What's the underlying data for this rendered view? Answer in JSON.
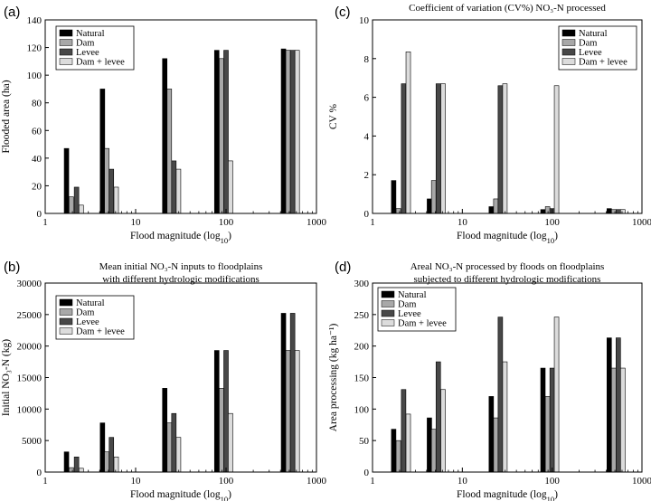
{
  "figure": {
    "panels": [
      "a",
      "b",
      "c",
      "d"
    ]
  },
  "chart_data": [
    {
      "panel": "(a)",
      "type": "bar",
      "title": [],
      "xlabel_main": "Flood magnitude (log",
      "xlabel_sub": "10",
      "xlabel_close": ")",
      "ylabel": "Flooded area (ha)",
      "xscale": "log",
      "xlim": [
        1,
        1000
      ],
      "xticks": [
        1,
        10,
        100,
        1000
      ],
      "xticklabels": [
        "1",
        "10",
        "100",
        "1000"
      ],
      "ylim": [
        0,
        140
      ],
      "yticks": [
        0,
        20,
        40,
        60,
        80,
        100,
        120,
        140
      ],
      "yticklabels": [
        "0",
        "20",
        "40",
        "60",
        "80",
        "100",
        "120",
        "140"
      ],
      "legend_position": "top-left",
      "series_names": [
        "Natural",
        "Dam",
        "Levee",
        "Dam + levee"
      ],
      "colors": [
        "#000000",
        "#a8a8a8",
        "#484848",
        "#dcdcdc"
      ],
      "groups": [
        {
          "x": [
            1.72,
            1.94,
            2.22,
            2.5
          ],
          "values": [
            47,
            12,
            19,
            6
          ]
        },
        {
          "x": [
            4.3,
            4.8,
            5.4,
            6.1
          ],
          "values": [
            90,
            47,
            32,
            19
          ]
        },
        {
          "x": [
            21,
            23.6,
            26.5,
            29.8
          ],
          "values": [
            112,
            90,
            38,
            32
          ]
        },
        {
          "x": [
            79,
            89,
            100,
            112
          ],
          "values": [
            118,
            112,
            118,
            38
          ]
        },
        {
          "x": [
            432,
            485,
            545,
            612
          ],
          "values": [
            119,
            118,
            118,
            118
          ]
        }
      ]
    },
    {
      "panel": "(c)",
      "type": "bar",
      "title": [
        "Coefficient of variation (CV%) NO₃-N processed"
      ],
      "xlabel_main": "Flood magnitude (log",
      "xlabel_sub": "10",
      "xlabel_close": ")",
      "ylabel": "CV %",
      "xscale": "log",
      "xlim": [
        1,
        1000
      ],
      "xticks": [
        1,
        10,
        100,
        1000
      ],
      "xticklabels": [
        "1",
        "10",
        "100",
        "1000"
      ],
      "ylim": [
        0,
        10
      ],
      "yticks": [
        0,
        2,
        4,
        6,
        8,
        10
      ],
      "yticklabels": [
        "0",
        "2",
        "4",
        "6",
        "8",
        "10"
      ],
      "legend_position": "top-right",
      "series_names": [
        "Natural",
        "Dam",
        "Levee",
        "Dam + levee"
      ],
      "colors": [
        "#000000",
        "#a8a8a8",
        "#484848",
        "#dcdcdc"
      ],
      "groups": [
        {
          "x": [
            1.72,
            1.94,
            2.22,
            2.5
          ],
          "values": [
            1.7,
            0.25,
            6.7,
            8.35
          ]
        },
        {
          "x": [
            4.3,
            4.8,
            5.4,
            6.1
          ],
          "values": [
            0.75,
            1.7,
            6.7,
            6.7
          ]
        },
        {
          "x": [
            21,
            23.6,
            26.5,
            29.8
          ],
          "values": [
            0.35,
            0.75,
            6.6,
            6.7
          ]
        },
        {
          "x": [
            79,
            89,
            100,
            112
          ],
          "values": [
            0.2,
            0.35,
            0.25,
            6.6
          ]
        },
        {
          "x": [
            432,
            485,
            545,
            612
          ],
          "values": [
            0.25,
            0.2,
            0.2,
            0.2
          ]
        }
      ]
    },
    {
      "panel": "(b)",
      "type": "bar",
      "title": [
        "Mean initial NO₃-N inputs to floodplains",
        "with different hydrologic modifications"
      ],
      "xlabel_main": "Flood magnitude (log",
      "xlabel_sub": "10",
      "xlabel_close": ")",
      "ylabel": "Initial NO₃-N (kg)",
      "xscale": "log",
      "xlim": [
        1,
        1000
      ],
      "xticks": [
        1,
        10,
        100,
        1000
      ],
      "xticklabels": [
        "1",
        "10",
        "100",
        "1000"
      ],
      "ylim": [
        0,
        30000
      ],
      "yticks": [
        0,
        5000,
        10000,
        15000,
        20000,
        25000,
        30000
      ],
      "yticklabels": [
        "0",
        "5000",
        "10000",
        "15000",
        "20000",
        "25000",
        "30000"
      ],
      "legend_position": "top-left",
      "series_names": [
        "Natural",
        "Dam",
        "Levee",
        "Dam + levee"
      ],
      "colors": [
        "#000000",
        "#a8a8a8",
        "#484848",
        "#dcdcdc"
      ],
      "groups": [
        {
          "x": [
            1.72,
            1.94,
            2.22,
            2.5
          ],
          "values": [
            3200,
            700,
            2400,
            600
          ]
        },
        {
          "x": [
            4.3,
            4.8,
            5.4,
            6.1
          ],
          "values": [
            7800,
            3200,
            5500,
            2400
          ]
        },
        {
          "x": [
            21,
            23.6,
            26.5,
            29.8
          ],
          "values": [
            13300,
            7800,
            9300,
            5500
          ]
        },
        {
          "x": [
            79,
            89,
            100,
            112
          ],
          "values": [
            19300,
            13300,
            19300,
            9300
          ]
        },
        {
          "x": [
            432,
            485,
            545,
            612
          ],
          "values": [
            25200,
            19300,
            25200,
            19300
          ]
        }
      ]
    },
    {
      "panel": "(d)",
      "type": "bar",
      "title": [
        "Areal NO₃-N processed by floods on floodplains",
        "subjected to different hydrologic modifications"
      ],
      "xlabel_main": "Flood magnitude (log",
      "xlabel_sub": "10",
      "xlabel_close": ")",
      "ylabel": "Area processing (kg ha⁻¹)",
      "xscale": "log",
      "xlim": [
        1,
        1000
      ],
      "xticks": [
        1,
        10,
        100,
        1000
      ],
      "xticklabels": [
        "1",
        "10",
        "100",
        "1000"
      ],
      "ylim": [
        0,
        300
      ],
      "yticks": [
        0,
        50,
        100,
        150,
        200,
        250,
        300
      ],
      "yticklabels": [
        "0",
        "50",
        "100",
        "150",
        "200",
        "250",
        "300"
      ],
      "legend_position": "top-left",
      "series_names": [
        "Natural",
        "Dam",
        "Levee",
        "Dam + levee"
      ],
      "colors": [
        "#000000",
        "#a8a8a8",
        "#484848",
        "#dcdcdc"
      ],
      "groups": [
        {
          "x": [
            1.72,
            1.94,
            2.22,
            2.5
          ],
          "values": [
            68,
            50,
            131,
            92
          ]
        },
        {
          "x": [
            4.3,
            4.8,
            5.4,
            6.1
          ],
          "values": [
            86,
            68,
            175,
            131
          ]
        },
        {
          "x": [
            21,
            23.6,
            26.5,
            29.8
          ],
          "values": [
            120,
            86,
            246,
            175
          ]
        },
        {
          "x": [
            79,
            89,
            100,
            112
          ],
          "values": [
            165,
            120,
            165,
            246
          ]
        },
        {
          "x": [
            432,
            485,
            545,
            612
          ],
          "values": [
            213,
            165,
            213,
            165
          ]
        }
      ]
    }
  ]
}
